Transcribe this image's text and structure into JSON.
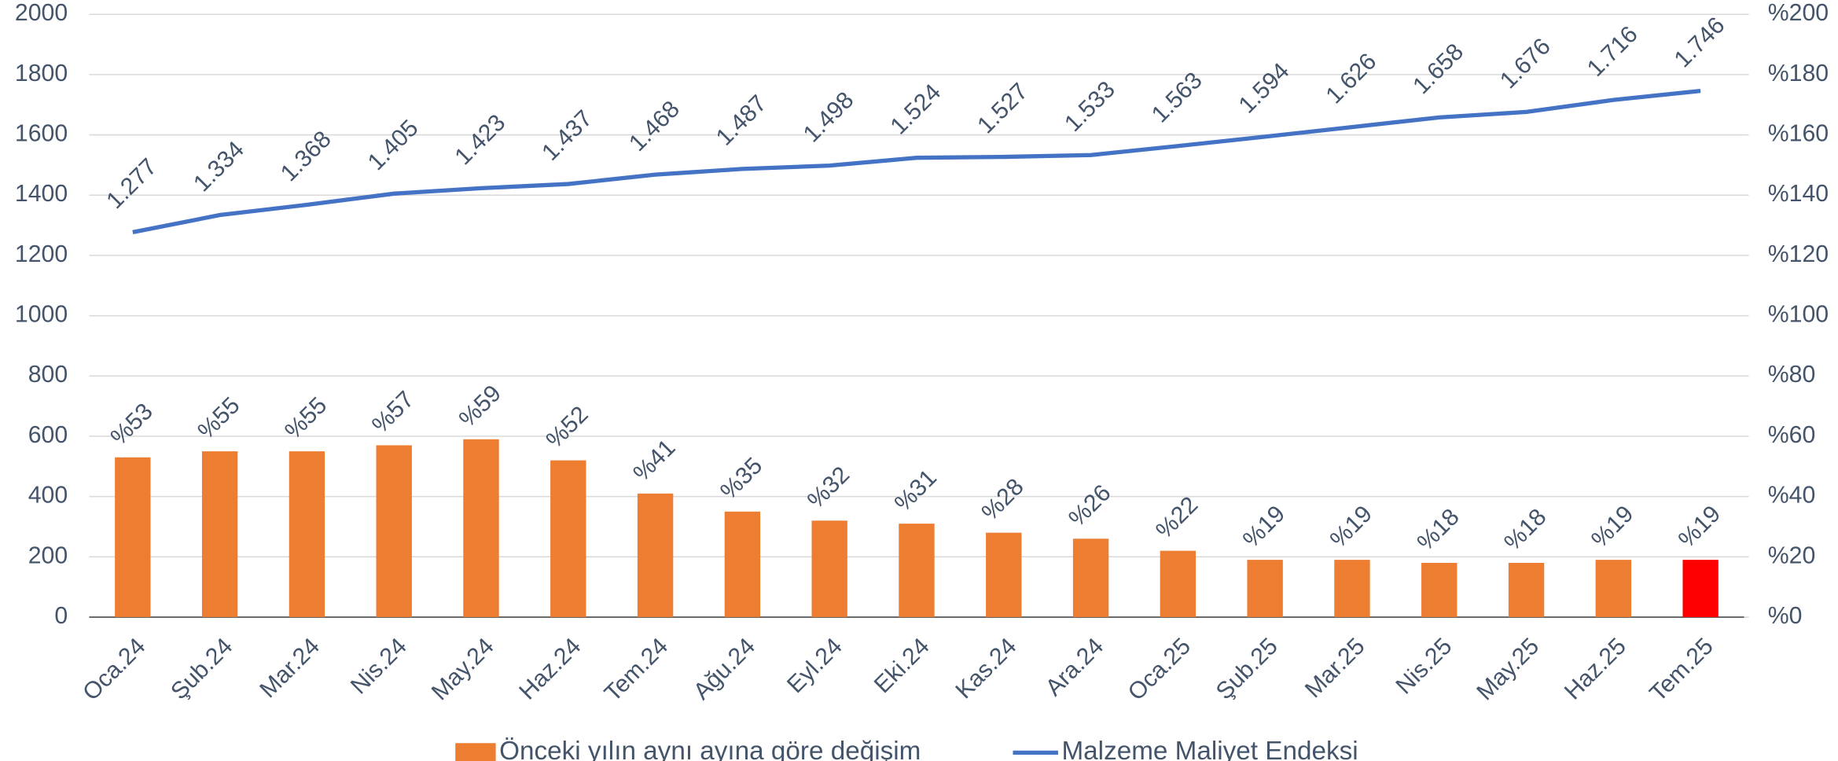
{
  "chart_data": {
    "type": "bar_line",
    "categories": [
      "Oca.24",
      "Şub.24",
      "Mar.24",
      "Nis.24",
      "May.24",
      "Haz.24",
      "Tem.24",
      "Ağu.24",
      "Eyl.24",
      "Eki.24",
      "Kas.24",
      "Ara.24",
      "Oca.25",
      "Şub.25",
      "Mar.25",
      "Nis.25",
      "May.25",
      "Haz.25",
      "Tem.25"
    ],
    "series": [
      {
        "name": "Önceki yılın aynı ayına göre değişim",
        "type": "bar",
        "axis": "y2",
        "color": "#ed7d31",
        "colors": [
          "#ed7d31",
          "#ed7d31",
          "#ed7d31",
          "#ed7d31",
          "#ed7d31",
          "#ed7d31",
          "#ed7d31",
          "#ed7d31",
          "#ed7d31",
          "#ed7d31",
          "#ed7d31",
          "#ed7d31",
          "#ed7d31",
          "#ed7d31",
          "#ed7d31",
          "#ed7d31",
          "#ed7d31",
          "#ed7d31",
          "#ff0000"
        ],
        "values": [
          53,
          55,
          55,
          57,
          59,
          52,
          41,
          35,
          32,
          31,
          28,
          26,
          22,
          19,
          19,
          18,
          18,
          19,
          19
        ],
        "value_labels": [
          "%53",
          "%55",
          "%55",
          "%57",
          "%59",
          "%52",
          "%41",
          "%35",
          "%32",
          "%31",
          "%28",
          "%26",
          "%22",
          "%19",
          "%19",
          "%18",
          "%18",
          "%19",
          "%19"
        ]
      },
      {
        "name": "Malzeme Maliyet Endeksi",
        "type": "line",
        "axis": "y",
        "color": "#4472c4",
        "values": [
          1277,
          1334,
          1368,
          1405,
          1423,
          1437,
          1468,
          1487,
          1498,
          1524,
          1527,
          1533,
          1563,
          1594,
          1626,
          1658,
          1676,
          1716,
          1746
        ],
        "value_labels": [
          "1.277",
          "1.334",
          "1.368",
          "1.405",
          "1.423",
          "1.437",
          "1.468",
          "1.487",
          "1.498",
          "1.524",
          "1.527",
          "1.533",
          "1.563",
          "1.594",
          "1.626",
          "1.658",
          "1.676",
          "1.716",
          "1.746"
        ]
      }
    ],
    "ylim": [
      0,
      2000
    ],
    "yticks": [
      0,
      200,
      400,
      600,
      800,
      1000,
      1200,
      1400,
      1600,
      1800,
      2000
    ],
    "y2lim": [
      0,
      200
    ],
    "y2ticks": [
      {
        "value": 0,
        "label": "%0"
      },
      {
        "value": 20,
        "label": "%20"
      },
      {
        "value": 40,
        "label": "%40"
      },
      {
        "value": 60,
        "label": "%60"
      },
      {
        "value": 80,
        "label": "%80"
      },
      {
        "value": 100,
        "label": "%100"
      },
      {
        "value": 120,
        "label": "%120"
      },
      {
        "value": 140,
        "label": "%140"
      },
      {
        "value": 160,
        "label": "%160"
      },
      {
        "value": 180,
        "label": "%180"
      },
      {
        "value": 200,
        "label": "%200"
      }
    ],
    "grid": true,
    "legend": "bottom"
  }
}
